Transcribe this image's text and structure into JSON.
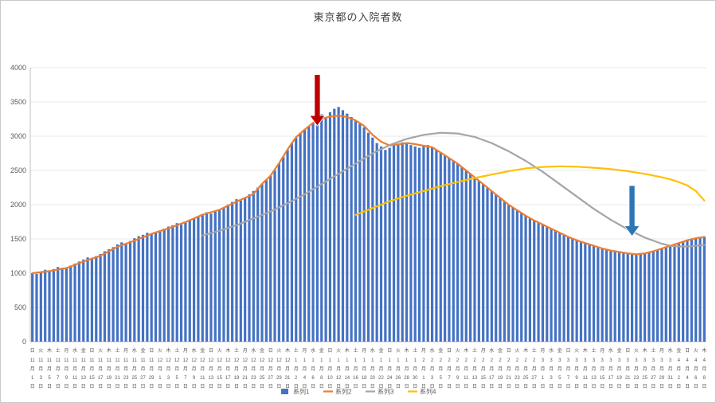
{
  "window": {
    "background": "#ffffff",
    "border_color": "#c8c8c8"
  },
  "chart_data": {
    "type": "bar",
    "title": "東京都の入院者数",
    "ylim": [
      0,
      4000
    ],
    "y_ticks": [
      0,
      500,
      1000,
      1500,
      2000,
      2500,
      3000,
      3500,
      4000
    ],
    "grid": true,
    "legend_position": "bottom",
    "n_days": 159,
    "axis_text_color": "#595959",
    "gridline_color": "#e8e8e8",
    "axis_line_color": "#bfbfbf",
    "x_tick_labels": [
      [
        "日",
        11,
        1
      ],
      [
        "火",
        11,
        3
      ],
      [
        "木",
        11,
        5
      ],
      [
        "土",
        11,
        7
      ],
      [
        "月",
        11,
        9
      ],
      [
        "水",
        11,
        11
      ],
      [
        "金",
        11,
        13
      ],
      [
        "日",
        11,
        15
      ],
      [
        "火",
        11,
        17
      ],
      [
        "木",
        11,
        19
      ],
      [
        "土",
        11,
        21
      ],
      [
        "月",
        11,
        23
      ],
      [
        "水",
        11,
        25
      ],
      [
        "金",
        11,
        27
      ],
      [
        "日",
        11,
        29
      ],
      [
        "火",
        12,
        1
      ],
      [
        "木",
        12,
        3
      ],
      [
        "土",
        12,
        5
      ],
      [
        "月",
        12,
        7
      ],
      [
        "水",
        12,
        9
      ],
      [
        "金",
        12,
        11
      ],
      [
        "日",
        12,
        13
      ],
      [
        "火",
        12,
        15
      ],
      [
        "木",
        12,
        17
      ],
      [
        "土",
        12,
        19
      ],
      [
        "月",
        12,
        21
      ],
      [
        "水",
        12,
        23
      ],
      [
        "金",
        12,
        25
      ],
      [
        "日",
        12,
        27
      ],
      [
        "火",
        12,
        29
      ],
      [
        "木",
        12,
        31
      ],
      [
        "土",
        1,
        2
      ],
      [
        "月",
        1,
        4
      ],
      [
        "水",
        1,
        6
      ],
      [
        "金",
        1,
        8
      ],
      [
        "日",
        1,
        10
      ],
      [
        "火",
        1,
        12
      ],
      [
        "木",
        1,
        14
      ],
      [
        "土",
        1,
        16
      ],
      [
        "月",
        1,
        18
      ],
      [
        "水",
        1,
        20
      ],
      [
        "金",
        1,
        22
      ],
      [
        "日",
        1,
        24
      ],
      [
        "火",
        1,
        26
      ],
      [
        "木",
        1,
        28
      ],
      [
        "土",
        1,
        30
      ],
      [
        "月",
        2,
        1
      ],
      [
        "水",
        2,
        3
      ],
      [
        "金",
        2,
        5
      ],
      [
        "日",
        2,
        7
      ],
      [
        "火",
        2,
        9
      ],
      [
        "木",
        2,
        11
      ],
      [
        "土",
        2,
        13
      ],
      [
        "月",
        2,
        15
      ],
      [
        "水",
        2,
        17
      ],
      [
        "金",
        2,
        19
      ],
      [
        "日",
        2,
        21
      ],
      [
        "火",
        2,
        23
      ],
      [
        "木",
        2,
        25
      ],
      [
        "土",
        2,
        27
      ],
      [
        "月",
        3,
        1
      ],
      [
        "水",
        3,
        3
      ],
      [
        "金",
        3,
        5
      ],
      [
        "日",
        3,
        7
      ],
      [
        "火",
        3,
        9
      ],
      [
        "木",
        3,
        11
      ],
      [
        "土",
        3,
        13
      ],
      [
        "月",
        3,
        15
      ],
      [
        "水",
        3,
        17
      ],
      [
        "金",
        3,
        19
      ],
      [
        "日",
        3,
        21
      ],
      [
        "火",
        3,
        23
      ],
      [
        "木",
        3,
        25
      ],
      [
        "土",
        3,
        27
      ],
      [
        "月",
        3,
        29
      ],
      [
        "水",
        3,
        31
      ],
      [
        "金",
        4,
        2
      ],
      [
        "日",
        4,
        4
      ],
      [
        "火",
        4,
        6
      ],
      [
        "木",
        4,
        8
      ]
    ],
    "series": [
      {
        "name": "系列1",
        "type": "bar",
        "color": "#4472c4",
        "values": [
          1000,
          990,
          1020,
          1050,
          1030,
          1060,
          1090,
          1080,
          1070,
          1110,
          1140,
          1170,
          1200,
          1230,
          1210,
          1250,
          1280,
          1320,
          1350,
          1380,
          1420,
          1450,
          1430,
          1470,
          1510,
          1540,
          1560,
          1590,
          1570,
          1600,
          1620,
          1650,
          1680,
          1700,
          1730,
          1710,
          1740,
          1770,
          1800,
          1830,
          1860,
          1890,
          1870,
          1900,
          1930,
          1960,
          2000,
          2040,
          2080,
          2060,
          2100,
          2150,
          2200,
          2250,
          2300,
          2360,
          2420,
          2500,
          2600,
          2700,
          2800,
          2900,
          2980,
          3050,
          3100,
          3150,
          3200,
          3270,
          3320,
          3280,
          3350,
          3400,
          3427,
          3380,
          3330,
          3280,
          3230,
          3180,
          3130,
          3050,
          2980,
          2900,
          2850,
          2800,
          2830,
          2860,
          2890,
          2910,
          2890,
          2870,
          2850,
          2830,
          2850,
          2870,
          2840,
          2800,
          2760,
          2720,
          2680,
          2640,
          2600,
          2550,
          2500,
          2450,
          2400,
          2350,
          2300,
          2250,
          2200,
          2150,
          2100,
          2050,
          2000,
          1960,
          1920,
          1880,
          1840,
          1800,
          1770,
          1740,
          1710,
          1680,
          1650,
          1620,
          1590,
          1560,
          1530,
          1500,
          1480,
          1460,
          1440,
          1420,
          1400,
          1380,
          1360,
          1340,
          1330,
          1320,
          1310,
          1300,
          1290,
          1280,
          1275,
          1280,
          1290,
          1300,
          1320,
          1340,
          1360,
          1380,
          1400,
          1420,
          1440,
          1460,
          1480,
          1500,
          1510,
          1520,
          1530
        ]
      },
      {
        "name": "系列2",
        "type": "line",
        "color": "#ed7d31",
        "points": [
          [
            0,
            1000
          ],
          [
            4,
            1030
          ],
          [
            8,
            1075
          ],
          [
            12,
            1170
          ],
          [
            16,
            1255
          ],
          [
            20,
            1385
          ],
          [
            24,
            1475
          ],
          [
            28,
            1575
          ],
          [
            32,
            1655
          ],
          [
            36,
            1745
          ],
          [
            40,
            1855
          ],
          [
            44,
            1925
          ],
          [
            48,
            2045
          ],
          [
            52,
            2155
          ],
          [
            54,
            2305
          ],
          [
            56,
            2425
          ],
          [
            58,
            2605
          ],
          [
            60,
            2805
          ],
          [
            62,
            2985
          ],
          [
            64,
            3095
          ],
          [
            66,
            3195
          ],
          [
            68,
            3255
          ],
          [
            70,
            3285
          ],
          [
            72,
            3300
          ],
          [
            74,
            3280
          ],
          [
            76,
            3230
          ],
          [
            78,
            3150
          ],
          [
            80,
            3020
          ],
          [
            82,
            2920
          ],
          [
            84,
            2865
          ],
          [
            86,
            2880
          ],
          [
            88,
            2900
          ],
          [
            90,
            2885
          ],
          [
            92,
            2860
          ],
          [
            94,
            2840
          ],
          [
            96,
            2760
          ],
          [
            98,
            2680
          ],
          [
            100,
            2600
          ],
          [
            102,
            2500
          ],
          [
            104,
            2400
          ],
          [
            106,
            2300
          ],
          [
            108,
            2200
          ],
          [
            110,
            2100
          ],
          [
            112,
            2000
          ],
          [
            114,
            1920
          ],
          [
            116,
            1840
          ],
          [
            118,
            1770
          ],
          [
            120,
            1710
          ],
          [
            122,
            1650
          ],
          [
            124,
            1590
          ],
          [
            126,
            1530
          ],
          [
            128,
            1480
          ],
          [
            130,
            1440
          ],
          [
            132,
            1400
          ],
          [
            134,
            1360
          ],
          [
            136,
            1330
          ],
          [
            138,
            1310
          ],
          [
            140,
            1290
          ],
          [
            142,
            1275
          ],
          [
            144,
            1290
          ],
          [
            146,
            1320
          ],
          [
            148,
            1360
          ],
          [
            150,
            1400
          ],
          [
            152,
            1440
          ],
          [
            154,
            1480
          ],
          [
            156,
            1510
          ],
          [
            158,
            1530
          ]
        ]
      },
      {
        "name": "系列3",
        "type": "line",
        "color": "#a5a5a5",
        "points": [
          [
            40,
            1550
          ],
          [
            44,
            1620
          ],
          [
            48,
            1700
          ],
          [
            52,
            1800
          ],
          [
            56,
            1900
          ],
          [
            60,
            2020
          ],
          [
            64,
            2150
          ],
          [
            68,
            2300
          ],
          [
            72,
            2450
          ],
          [
            76,
            2600
          ],
          [
            80,
            2750
          ],
          [
            84,
            2870
          ],
          [
            88,
            2960
          ],
          [
            92,
            3020
          ],
          [
            96,
            3050
          ],
          [
            100,
            3040
          ],
          [
            104,
            2990
          ],
          [
            108,
            2900
          ],
          [
            112,
            2780
          ],
          [
            116,
            2640
          ],
          [
            120,
            2480
          ],
          [
            124,
            2300
          ],
          [
            128,
            2120
          ],
          [
            132,
            1940
          ],
          [
            136,
            1780
          ],
          [
            140,
            1640
          ],
          [
            144,
            1520
          ],
          [
            148,
            1430
          ],
          [
            150,
            1400
          ],
          [
            152,
            1390
          ],
          [
            154,
            1390
          ],
          [
            156,
            1400
          ],
          [
            158,
            1410
          ]
        ]
      },
      {
        "name": "系列4",
        "type": "line",
        "color": "#ffc000",
        "points": [
          [
            76,
            1850
          ],
          [
            80,
            1950
          ],
          [
            84,
            2050
          ],
          [
            88,
            2130
          ],
          [
            92,
            2200
          ],
          [
            96,
            2270
          ],
          [
            100,
            2330
          ],
          [
            104,
            2390
          ],
          [
            108,
            2440
          ],
          [
            112,
            2490
          ],
          [
            116,
            2530
          ],
          [
            120,
            2550
          ],
          [
            124,
            2560
          ],
          [
            128,
            2555
          ],
          [
            132,
            2540
          ],
          [
            136,
            2520
          ],
          [
            140,
            2490
          ],
          [
            144,
            2450
          ],
          [
            148,
            2400
          ],
          [
            150,
            2370
          ],
          [
            152,
            2330
          ],
          [
            154,
            2280
          ],
          [
            156,
            2200
          ],
          [
            158,
            2060
          ]
        ]
      }
    ],
    "annotations": [
      {
        "name": "red-arrow",
        "type": "arrow-down",
        "color": "#c00000",
        "x_index": 67,
        "tip_value": 3150,
        "tail_value": 3900
      },
      {
        "name": "blue-arrow",
        "type": "arrow-down",
        "color": "#2e75b6",
        "x_index": 141,
        "tip_value": 1540,
        "tail_value": 2280
      }
    ]
  }
}
